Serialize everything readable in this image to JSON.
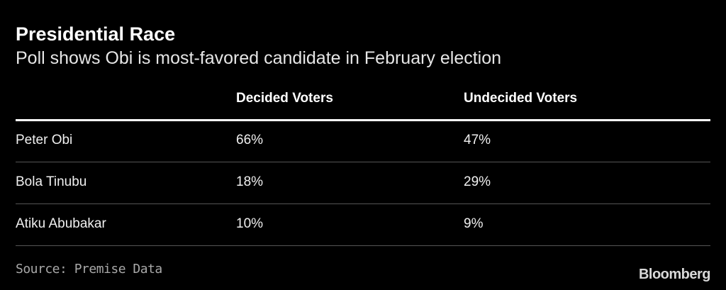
{
  "header": {
    "title": "Presidential Race",
    "subtitle": "Poll shows Obi is most-favored candidate in February election"
  },
  "table": {
    "columns": [
      "",
      "Decided Voters",
      "Undecided Voters"
    ],
    "rows": [
      [
        "Peter Obi",
        "66%",
        "47%"
      ],
      [
        "Bola Tinubu",
        "18%",
        "29%"
      ],
      [
        "Atiku Abubakar",
        "10%",
        "9%"
      ]
    ]
  },
  "footer": {
    "source": "Source: Premise Data",
    "brand": "Bloomberg"
  }
}
